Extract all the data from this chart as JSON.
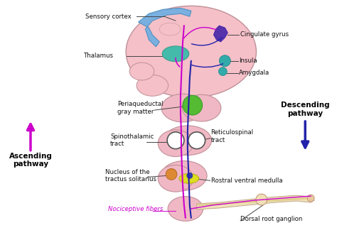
{
  "background_color": "#ffffff",
  "brain_color": "#f5c0c8",
  "cortex_color": "#7ab0e0",
  "brainstem_color": "#f0b8c4",
  "asc_color": "#cc00cc",
  "desc_color": "#2222aa",
  "pag_color": "#55bb33",
  "thal_color": "#44bbaa",
  "cing_color": "#5533aa",
  "insula_color": "#33aaaa",
  "rvm_color": "#dddd22",
  "nts_color": "#dd8833",
  "arm_color": "#f0e0b8",
  "labels": {
    "sensory_cortex": "Sensory cortex",
    "cingulate_gyrus": "Cingulate gyrus",
    "thalamus": "Thalamus",
    "insula": "Insula",
    "amygdala": "Amygdala",
    "periaqueductal": "Periaqueductal\ngray matter",
    "spinothalamic": "Spinothalamic\ntract",
    "reticulospinal": "Reticulospinal\ntract",
    "nucleus": "Nucleus of the\ntractus solitarius",
    "rostral": "Rostral ventral medulla",
    "nociceptive": "Nociceptive fibers",
    "dorsal_root": "Dorsal root ganglion",
    "ascending": "Ascending\npathway",
    "descending": "Descending\npathway"
  }
}
